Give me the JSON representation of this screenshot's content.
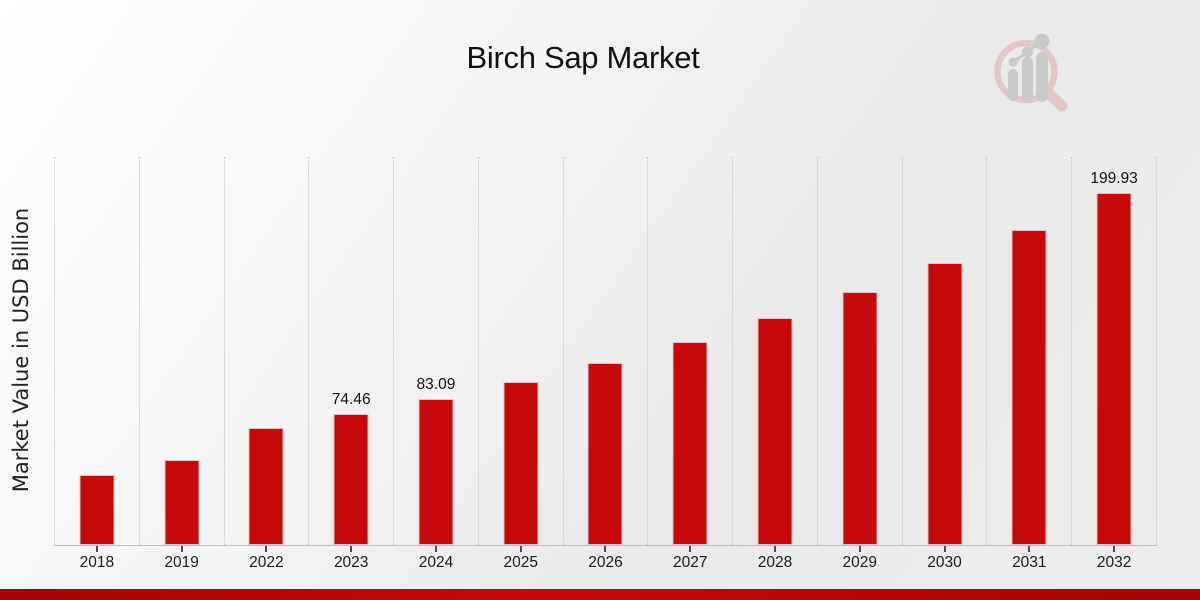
{
  "header": {
    "title": "Birch Sap Market"
  },
  "y_axis": {
    "label": "Market Value in USD Billion"
  },
  "branding": {
    "logo": "magnifier-bar-chart-watermark"
  },
  "colors": {
    "bar": "#c80909",
    "bottom_strip_dark": "#a30404",
    "bottom_strip_bright": "#c60808",
    "gridline": "#c3c3c3",
    "logo_pink": "#e3c6c6",
    "logo_gray": "#c9c9c9",
    "text": "#111111"
  },
  "chart_data": {
    "type": "bar",
    "title": "Birch Sap Market",
    "xlabel": "",
    "ylabel": "Market Value in USD Billion",
    "categories": [
      "2018",
      "2019",
      "2022",
      "2023",
      "2024",
      "2025",
      "2026",
      "2027",
      "2028",
      "2029",
      "2030",
      "2031",
      "2032"
    ],
    "values": [
      40.0,
      48.3,
      66.7,
      74.46,
      83.09,
      92.7,
      103.5,
      115.5,
      128.9,
      143.8,
      160.5,
      179.1,
      199.93
    ],
    "point_labels": {
      "2023": "74.46",
      "2024": "83.09",
      "2032": "199.93"
    },
    "ylim": [
      0,
      221
    ],
    "grid": "vertical-dotted",
    "legend": "none",
    "bar_color": "#c80909"
  }
}
